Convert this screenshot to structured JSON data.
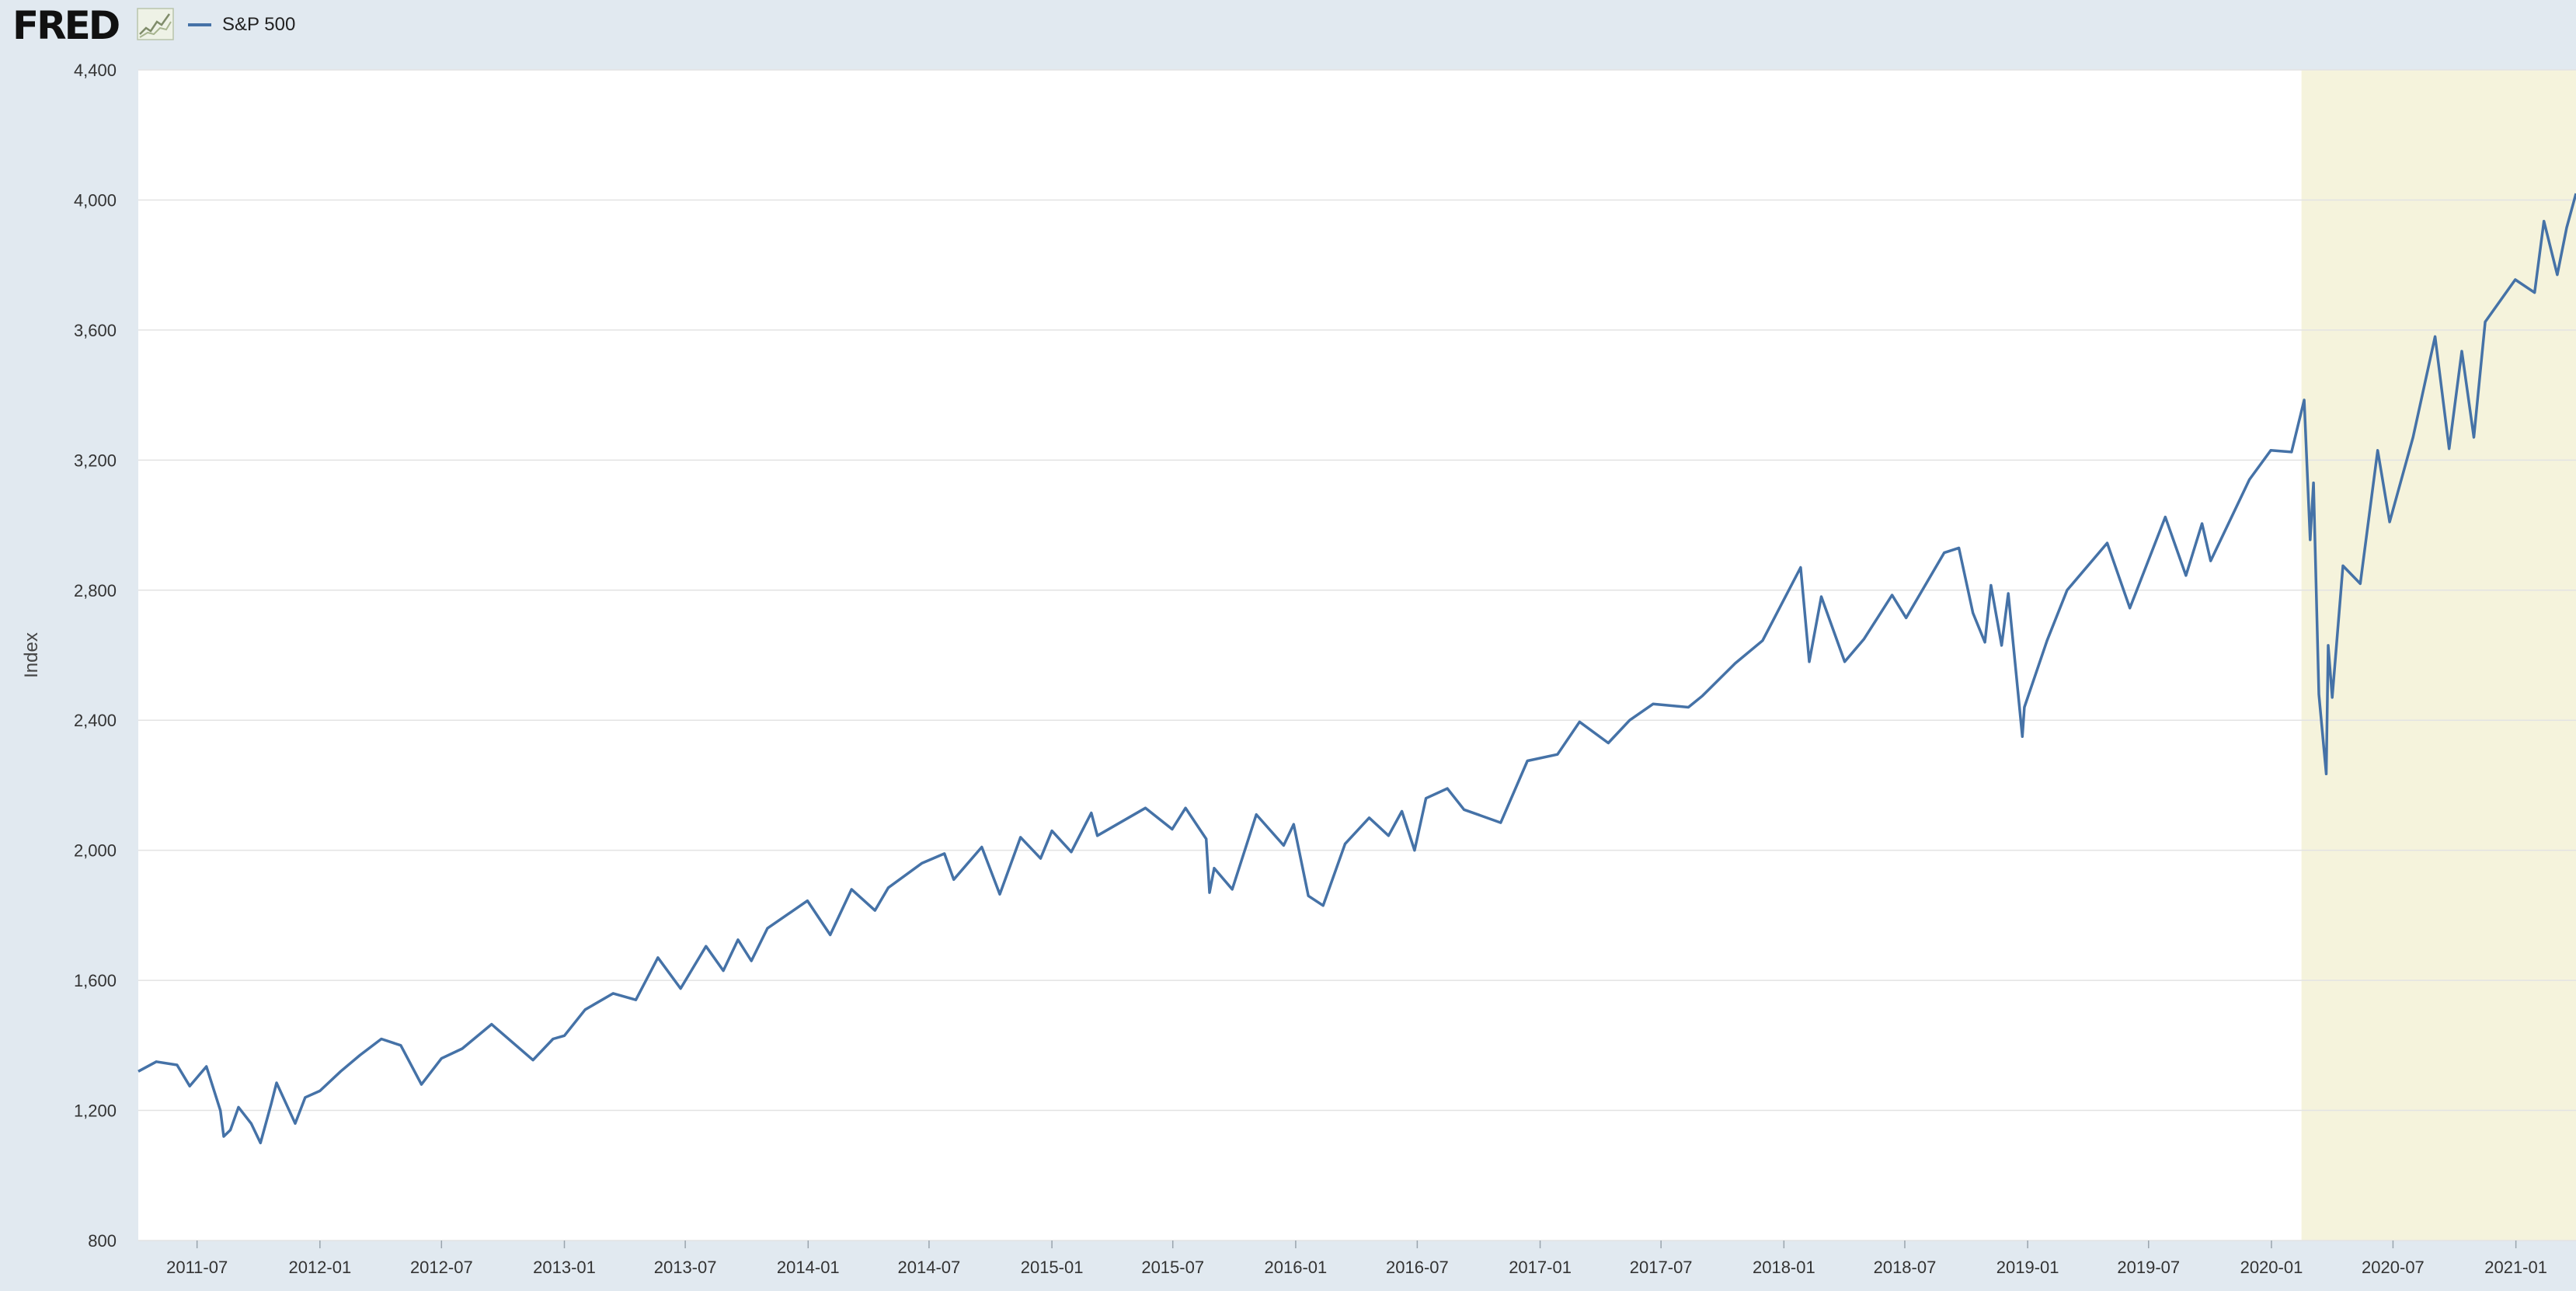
{
  "header": {
    "logo_text": "FRED",
    "logo_graph_icon": "fred-line-graph-icon"
  },
  "chart_data": {
    "type": "line",
    "title": "",
    "xlabel": "",
    "ylabel": "Index",
    "x_ticks": [
      "2011-07",
      "2012-01",
      "2012-07",
      "2013-01",
      "2013-07",
      "2014-01",
      "2014-07",
      "2015-01",
      "2015-07",
      "2016-01",
      "2016-07",
      "2017-01",
      "2017-07",
      "2018-01",
      "2018-07",
      "2019-01",
      "2019-07",
      "2020-01",
      "2020-07",
      "2021-01"
    ],
    "y_ticks": [
      800,
      1200,
      1600,
      2000,
      2400,
      2800,
      3200,
      3600,
      4000,
      4400
    ],
    "y_tick_labels": [
      "800",
      "1,200",
      "1,600",
      "2,000",
      "2,400",
      "2,800",
      "3,200",
      "3,600",
      "4,000",
      "4,400"
    ],
    "ylim": [
      800,
      4400
    ],
    "xlim": [
      "2011-04-04",
      "2021-04-01"
    ],
    "grid": "horizontal",
    "legend_position": "top-left",
    "colors": {
      "line": "#4572a7",
      "recession_shade": "#f5f3dc",
      "plot_background": "#ffffff",
      "page_background": "#e1e9f0",
      "grid": "#e3e3e3"
    },
    "recession_shading": [
      {
        "start": "2020-02-15",
        "end": "2021-04-01"
      }
    ],
    "series": [
      {
        "name": "S&P 500",
        "points": [
          [
            "2011-04-04",
            1320
          ],
          [
            "2011-05-01",
            1350
          ],
          [
            "2011-06-01",
            1340
          ],
          [
            "2011-06-20",
            1275
          ],
          [
            "2011-07-15",
            1335
          ],
          [
            "2011-08-05",
            1200
          ],
          [
            "2011-08-10",
            1120
          ],
          [
            "2011-08-20",
            1140
          ],
          [
            "2011-09-01",
            1210
          ],
          [
            "2011-09-20",
            1160
          ],
          [
            "2011-10-04",
            1100
          ],
          [
            "2011-10-20",
            1220
          ],
          [
            "2011-10-28",
            1285
          ],
          [
            "2011-11-25",
            1160
          ],
          [
            "2011-12-10",
            1240
          ],
          [
            "2012-01-01",
            1260
          ],
          [
            "2012-02-01",
            1320
          ],
          [
            "2012-03-01",
            1370
          ],
          [
            "2012-04-02",
            1420
          ],
          [
            "2012-05-01",
            1400
          ],
          [
            "2012-06-01",
            1280
          ],
          [
            "2012-07-01",
            1360
          ],
          [
            "2012-08-01",
            1390
          ],
          [
            "2012-09-14",
            1465
          ],
          [
            "2012-11-15",
            1355
          ],
          [
            "2012-12-15",
            1420
          ],
          [
            "2013-01-01",
            1430
          ],
          [
            "2013-02-01",
            1510
          ],
          [
            "2013-03-15",
            1560
          ],
          [
            "2013-04-18",
            1540
          ],
          [
            "2013-05-21",
            1670
          ],
          [
            "2013-06-24",
            1575
          ],
          [
            "2013-08-01",
            1705
          ],
          [
            "2013-08-27",
            1630
          ],
          [
            "2013-09-18",
            1725
          ],
          [
            "2013-10-08",
            1660
          ],
          [
            "2013-11-01",
            1760
          ],
          [
            "2013-12-31",
            1845
          ],
          [
            "2014-02-03",
            1740
          ],
          [
            "2014-03-07",
            1880
          ],
          [
            "2014-04-11",
            1815
          ],
          [
            "2014-05-01",
            1885
          ],
          [
            "2014-06-20",
            1960
          ],
          [
            "2014-07-24",
            1990
          ],
          [
            "2014-08-07",
            1910
          ],
          [
            "2014-09-18",
            2010
          ],
          [
            "2014-10-15",
            1865
          ],
          [
            "2014-11-15",
            2040
          ],
          [
            "2014-12-15",
            1975
          ],
          [
            "2015-01-01",
            2060
          ],
          [
            "2015-01-30",
            1995
          ],
          [
            "2015-03-01",
            2115
          ],
          [
            "2015-03-10",
            2045
          ],
          [
            "2015-05-21",
            2130
          ],
          [
            "2015-06-30",
            2065
          ],
          [
            "2015-07-20",
            2130
          ],
          [
            "2015-08-20",
            2035
          ],
          [
            "2015-08-25",
            1870
          ],
          [
            "2015-09-01",
            1945
          ],
          [
            "2015-09-28",
            1880
          ],
          [
            "2015-11-03",
            2110
          ],
          [
            "2015-12-14",
            2015
          ],
          [
            "2015-12-29",
            2080
          ],
          [
            "2016-01-20",
            1860
          ],
          [
            "2016-02-11",
            1830
          ],
          [
            "2016-03-15",
            2020
          ],
          [
            "2016-04-20",
            2100
          ],
          [
            "2016-05-19",
            2045
          ],
          [
            "2016-06-08",
            2120
          ],
          [
            "2016-06-27",
            2000
          ],
          [
            "2016-07-14",
            2160
          ],
          [
            "2016-08-15",
            2190
          ],
          [
            "2016-09-09",
            2125
          ],
          [
            "2016-11-03",
            2085
          ],
          [
            "2016-12-13",
            2275
          ],
          [
            "2017-01-27",
            2295
          ],
          [
            "2017-03-01",
            2395
          ],
          [
            "2017-04-13",
            2330
          ],
          [
            "2017-05-15",
            2400
          ],
          [
            "2017-06-19",
            2450
          ],
          [
            "2017-08-11",
            2440
          ],
          [
            "2017-09-01",
            2475
          ],
          [
            "2017-10-20",
            2575
          ],
          [
            "2017-11-30",
            2645
          ],
          [
            "2018-01-26",
            2870
          ],
          [
            "2018-02-08",
            2580
          ],
          [
            "2018-02-26",
            2780
          ],
          [
            "2018-04-02",
            2580
          ],
          [
            "2018-05-01",
            2650
          ],
          [
            "2018-06-12",
            2785
          ],
          [
            "2018-07-03",
            2715
          ],
          [
            "2018-08-29",
            2915
          ],
          [
            "2018-09-20",
            2930
          ],
          [
            "2018-10-11",
            2730
          ],
          [
            "2018-10-29",
            2640
          ],
          [
            "2018-11-07",
            2815
          ],
          [
            "2018-11-23",
            2630
          ],
          [
            "2018-12-03",
            2790
          ],
          [
            "2018-12-24",
            2350
          ],
          [
            "2018-12-27",
            2440
          ],
          [
            "2019-01-30",
            2645
          ],
          [
            "2019-03-01",
            2800
          ],
          [
            "2019-04-30",
            2945
          ],
          [
            "2019-06-03",
            2745
          ],
          [
            "2019-07-26",
            3025
          ],
          [
            "2019-08-26",
            2845
          ],
          [
            "2019-09-19",
            3005
          ],
          [
            "2019-10-02",
            2890
          ],
          [
            "2019-11-29",
            3140
          ],
          [
            "2019-12-31",
            3230
          ],
          [
            "2020-01-31",
            3225
          ],
          [
            "2020-02-19",
            3385
          ],
          [
            "2020-02-28",
            2955
          ],
          [
            "2020-03-04",
            3130
          ],
          [
            "2020-03-12",
            2480
          ],
          [
            "2020-03-23",
            2235
          ],
          [
            "2020-03-26",
            2630
          ],
          [
            "2020-04-01",
            2470
          ],
          [
            "2020-04-17",
            2875
          ],
          [
            "2020-05-13",
            2820
          ],
          [
            "2020-06-08",
            3230
          ],
          [
            "2020-06-26",
            3010
          ],
          [
            "2020-07-31",
            3270
          ],
          [
            "2020-09-02",
            3580
          ],
          [
            "2020-09-23",
            3235
          ],
          [
            "2020-10-12",
            3535
          ],
          [
            "2020-10-30",
            3270
          ],
          [
            "2020-11-16",
            3625
          ],
          [
            "2020-12-31",
            3755
          ],
          [
            "2021-01-29",
            3715
          ],
          [
            "2021-02-12",
            3935
          ],
          [
            "2021-03-04",
            3770
          ],
          [
            "2021-03-18",
            3915
          ],
          [
            "2021-04-01",
            4020
          ]
        ]
      }
    ]
  }
}
